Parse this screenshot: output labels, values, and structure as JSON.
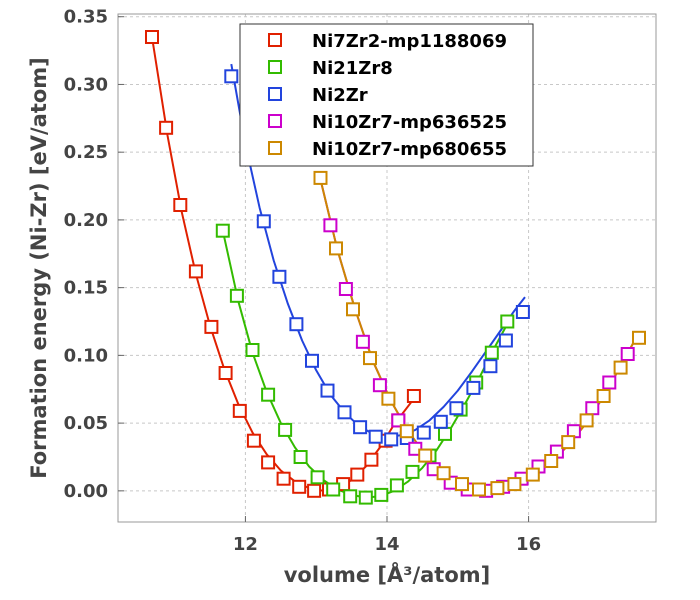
{
  "chart_data": {
    "type": "scatter",
    "title": "",
    "xlabel": "volume [Å³/atom]",
    "ylabel": "Formation energy (Ni-Zr) [eV/atom]",
    "xlim": [
      10.2,
      17.8
    ],
    "ylim": [
      -0.023,
      0.352
    ],
    "xticks": [
      12,
      14,
      16
    ],
    "xtick_labels": [
      "12",
      "14",
      "16"
    ],
    "yticks": [
      0.0,
      0.05,
      0.1,
      0.15,
      0.2,
      0.25,
      0.3,
      0.35
    ],
    "ytick_labels": [
      "0.00",
      "0.05",
      "0.10",
      "0.15",
      "0.20",
      "0.25",
      "0.30",
      "0.35"
    ],
    "grid": true,
    "legend_position": "top-center",
    "marker": "open-square",
    "series": [
      {
        "name": "Ni7Zr2-mp1188069",
        "color": "#e02000",
        "x": [
          10.68,
          10.88,
          11.08,
          11.3,
          11.52,
          11.72,
          11.92,
          12.12,
          12.32,
          12.54,
          12.76,
          12.97,
          13.18,
          13.38,
          13.58,
          13.78,
          13.98,
          14.16,
          14.38
        ],
        "y": [
          0.335,
          0.268,
          0.211,
          0.162,
          0.121,
          0.087,
          0.059,
          0.037,
          0.021,
          0.009,
          0.003,
          0.0,
          0.001,
          0.005,
          0.012,
          0.023,
          0.037,
          0.052,
          0.07
        ],
        "fit_x": [
          10.68,
          10.9,
          11.1,
          11.3,
          11.5,
          11.7,
          11.9,
          12.1,
          12.3,
          12.5,
          12.7,
          12.9,
          13.1,
          13.3,
          13.5,
          13.7,
          13.9,
          14.1,
          14.38
        ],
        "fit_y": [
          0.335,
          0.262,
          0.206,
          0.16,
          0.122,
          0.09,
          0.064,
          0.043,
          0.027,
          0.015,
          0.007,
          0.002,
          0.0,
          0.002,
          0.008,
          0.018,
          0.032,
          0.049,
          0.068
        ]
      },
      {
        "name": "Ni21Zr8",
        "color": "#33bb00",
        "x": [
          11.68,
          11.88,
          12.1,
          12.32,
          12.56,
          12.78,
          13.02,
          13.24,
          13.48,
          13.7,
          13.92,
          14.14,
          14.36,
          14.6,
          14.82,
          15.04,
          15.26,
          15.48,
          15.7
        ],
        "y": [
          0.192,
          0.144,
          0.104,
          0.071,
          0.045,
          0.025,
          0.01,
          0.001,
          -0.004,
          -0.005,
          -0.003,
          0.004,
          0.014,
          0.026,
          0.042,
          0.06,
          0.08,
          0.102,
          0.125
        ],
        "fit_x": [
          11.68,
          11.9,
          12.1,
          12.3,
          12.5,
          12.7,
          12.9,
          13.1,
          13.3,
          13.5,
          13.7,
          13.9,
          14.1,
          14.3,
          14.5,
          14.7,
          14.9,
          15.1,
          15.3,
          15.5,
          15.75
        ],
        "fit_y": [
          0.192,
          0.14,
          0.102,
          0.073,
          0.05,
          0.032,
          0.018,
          0.008,
          0.001,
          -0.003,
          -0.005,
          -0.004,
          0.0,
          0.007,
          0.017,
          0.03,
          0.046,
          0.064,
          0.083,
          0.104,
          0.128
        ]
      },
      {
        "name": "Ni2Zr",
        "color": "#2244dd",
        "x": [
          11.8,
          12.04,
          12.26,
          12.48,
          12.72,
          12.94,
          13.16,
          13.4,
          13.62,
          13.84,
          14.06,
          14.28,
          14.52,
          14.76,
          14.98,
          15.22,
          15.46,
          15.68,
          15.92
        ],
        "y": [
          0.306,
          0.249,
          0.199,
          0.158,
          0.123,
          0.096,
          0.074,
          0.058,
          0.047,
          0.04,
          0.038,
          0.039,
          0.043,
          0.051,
          0.061,
          0.076,
          0.092,
          0.111,
          0.132
        ],
        "fit_x": [
          11.8,
          12.0,
          12.2,
          12.4,
          12.6,
          12.8,
          13.0,
          13.2,
          13.4,
          13.6,
          13.8,
          14.0,
          14.2,
          14.4,
          14.6,
          14.8,
          15.0,
          15.2,
          15.4,
          15.6,
          15.8,
          15.95
        ],
        "fit_y": [
          0.315,
          0.256,
          0.209,
          0.17,
          0.138,
          0.111,
          0.089,
          0.071,
          0.058,
          0.048,
          0.042,
          0.04,
          0.041,
          0.045,
          0.052,
          0.062,
          0.074,
          0.088,
          0.103,
          0.118,
          0.133,
          0.143
        ]
      },
      {
        "name": "Ni10Zr7-mp636525",
        "color": "#cc00cc",
        "x": [
          13.2,
          13.42,
          13.66,
          13.9,
          14.16,
          14.4,
          14.66,
          14.9,
          15.14,
          15.4,
          15.64,
          15.9,
          16.14,
          16.4,
          16.64,
          16.9,
          17.14,
          17.4
        ],
        "y": [
          0.196,
          0.149,
          0.11,
          0.078,
          0.052,
          0.031,
          0.016,
          0.006,
          0.001,
          0.0,
          0.003,
          0.009,
          0.018,
          0.029,
          0.044,
          0.061,
          0.08,
          0.101
        ],
        "fit_x": [
          13.05,
          13.3,
          13.55,
          13.8,
          14.05,
          14.3,
          14.55,
          14.8,
          15.05,
          15.3,
          15.55,
          15.8,
          16.05,
          16.3,
          16.55,
          16.8,
          17.05,
          17.3,
          17.55
        ],
        "fit_y": [
          0.232,
          0.178,
          0.134,
          0.096,
          0.067,
          0.044,
          0.026,
          0.013,
          0.005,
          0.001,
          0.001,
          0.004,
          0.01,
          0.02,
          0.033,
          0.049,
          0.069,
          0.092,
          0.116
        ]
      },
      {
        "name": "Ni10Zr7-mp680655",
        "color": "#cc8800",
        "x": [
          13.06,
          13.28,
          13.52,
          13.76,
          14.02,
          14.28,
          14.54,
          14.8,
          15.06,
          15.3,
          15.56,
          15.8,
          16.06,
          16.32,
          16.56,
          16.82,
          17.06,
          17.3,
          17.56
        ],
        "y": [
          0.231,
          0.179,
          0.134,
          0.098,
          0.068,
          0.044,
          0.026,
          0.013,
          0.005,
          0.001,
          0.002,
          0.005,
          0.012,
          0.022,
          0.036,
          0.052,
          0.07,
          0.091,
          0.113
        ],
        "fit_x": [
          13.05,
          13.3,
          13.55,
          13.8,
          14.05,
          14.3,
          14.55,
          14.8,
          15.05,
          15.3,
          15.55,
          15.8,
          16.05,
          16.3,
          16.55,
          16.8,
          17.05,
          17.3,
          17.55
        ],
        "fit_y": [
          0.232,
          0.178,
          0.134,
          0.096,
          0.067,
          0.044,
          0.026,
          0.013,
          0.005,
          0.001,
          0.001,
          0.004,
          0.01,
          0.02,
          0.033,
          0.049,
          0.069,
          0.092,
          0.116
        ]
      }
    ]
  }
}
